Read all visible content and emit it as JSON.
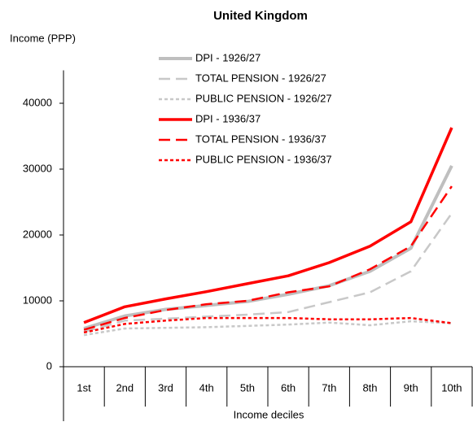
{
  "chart_data": {
    "type": "line",
    "title": "United Kingdom",
    "y_label": "Income (PPP)",
    "x_label": "Income deciles",
    "categories": [
      "1st",
      "2nd",
      "3rd",
      "4th",
      "5th",
      "6th",
      "7th",
      "8th",
      "9th",
      "10th"
    ],
    "ylim": [
      0,
      45000
    ],
    "yticks": [
      0,
      10000,
      20000,
      30000,
      40000
    ],
    "series": [
      {
        "name": "DPI  -  1926/27",
        "color": "#bfbfbf",
        "line_style": "solid",
        "values": [
          5800,
          7700,
          8700,
          9300,
          9900,
          11000,
          12300,
          14500,
          18000,
          30500
        ]
      },
      {
        "name": "TOTAL PENSION  -  1926/27",
        "color": "#c8c8c8",
        "line_style": "dashed",
        "values": [
          5300,
          7000,
          7300,
          7600,
          7900,
          8300,
          9800,
          11300,
          14500,
          23300
        ]
      },
      {
        "name": "PUBLIC PENSION  -  1926/27",
        "color": "#c8c8c8",
        "line_style": "dotted",
        "values": [
          4800,
          5800,
          5900,
          6000,
          6200,
          6400,
          6700,
          6300,
          6900,
          6600
        ]
      },
      {
        "name": "DPI  -  1936/37",
        "color": "#ff0000",
        "line_style": "solid",
        "values": [
          6700,
          9100,
          10300,
          11400,
          12600,
          13800,
          15800,
          18300,
          22000,
          36300
        ]
      },
      {
        "name": "TOTAL PENSION  -  1936/37",
        "color": "#ff0000",
        "line_style": "dashed",
        "values": [
          5600,
          7400,
          8600,
          9500,
          10000,
          11300,
          12200,
          14800,
          18300,
          27400
        ]
      },
      {
        "name": "PUBLIC PENSION  -  1936/37",
        "color": "#ff0000",
        "line_style": "dotted",
        "values": [
          5200,
          6500,
          7000,
          7400,
          7400,
          7400,
          7200,
          7200,
          7400,
          6600
        ]
      }
    ]
  }
}
